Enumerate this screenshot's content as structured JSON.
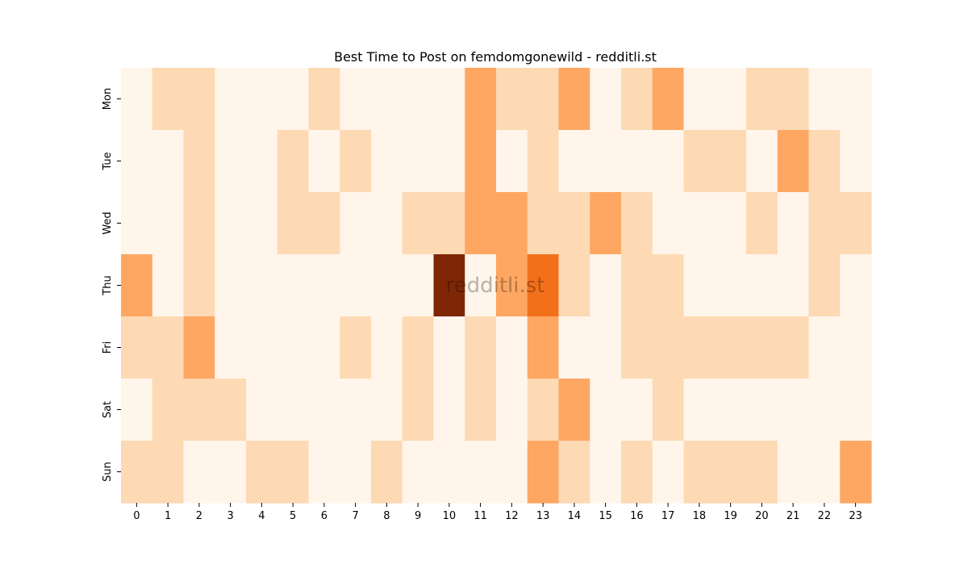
{
  "chart_data": {
    "type": "heatmap",
    "title": "Best Time to Post on femdomgonewild - redditli.st",
    "watermark": "redditli.st",
    "x_categories": [
      "0",
      "1",
      "2",
      "3",
      "4",
      "5",
      "6",
      "7",
      "8",
      "9",
      "10",
      "11",
      "12",
      "13",
      "14",
      "15",
      "16",
      "17",
      "18",
      "19",
      "20",
      "21",
      "22",
      "23"
    ],
    "y_categories": [
      "Mon",
      "Tue",
      "Wed",
      "Thu",
      "Fri",
      "Sat",
      "Sun"
    ],
    "colorscale": [
      "#fff5eb",
      "#fdd9b4",
      "#fda762",
      "#f3701b",
      "#7f2704"
    ],
    "values": [
      [
        0,
        1,
        1,
        0,
        0,
        0,
        1,
        0,
        0,
        0,
        0,
        2,
        1,
        1,
        2,
        0,
        1,
        2,
        0,
        0,
        1,
        1,
        0,
        0
      ],
      [
        0,
        0,
        1,
        0,
        0,
        1,
        0,
        1,
        0,
        0,
        0,
        2,
        0,
        1,
        0,
        0,
        0,
        0,
        1,
        1,
        0,
        2,
        1,
        0
      ],
      [
        0,
        0,
        1,
        0,
        0,
        1,
        1,
        0,
        0,
        1,
        1,
        2,
        2,
        1,
        1,
        2,
        1,
        0,
        0,
        0,
        1,
        0,
        1,
        1
      ],
      [
        2,
        0,
        1,
        0,
        0,
        0,
        0,
        0,
        0,
        0,
        4,
        0,
        2,
        3,
        1,
        0,
        1,
        1,
        0,
        0,
        0,
        0,
        1,
        0
      ],
      [
        1,
        1,
        2,
        0,
        0,
        0,
        0,
        1,
        0,
        1,
        0,
        1,
        0,
        2,
        0,
        0,
        1,
        1,
        1,
        1,
        1,
        1,
        0,
        0
      ],
      [
        0,
        1,
        1,
        1,
        0,
        0,
        0,
        0,
        0,
        1,
        0,
        1,
        0,
        1,
        2,
        0,
        0,
        1,
        0,
        0,
        0,
        0,
        0,
        0
      ],
      [
        1,
        1,
        0,
        0,
        1,
        1,
        0,
        0,
        1,
        0,
        0,
        0,
        0,
        2,
        1,
        0,
        1,
        0,
        1,
        1,
        1,
        0,
        0,
        2
      ]
    ]
  }
}
